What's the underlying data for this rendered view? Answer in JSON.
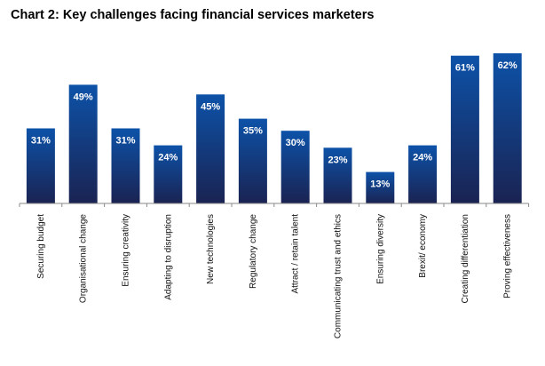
{
  "chart_data": {
    "type": "bar",
    "title": "Chart 2: Key challenges facing financial services marketers",
    "categories": [
      "Securing budget",
      "Organisational change",
      "Ensuring creativity",
      "Adapting to disruption",
      "New technologies",
      "Regulatory change",
      "Attract / retain talent",
      "Communicating trust and ethics",
      "Ensuring diversity",
      "Brexit/ economy",
      "Creating differentiation",
      "Proving effectiveness"
    ],
    "values": [
      31,
      49,
      31,
      24,
      45,
      35,
      30,
      23,
      13,
      24,
      61,
      62
    ],
    "value_labels": [
      "31%",
      "49%",
      "31%",
      "24%",
      "45%",
      "35%",
      "30%",
      "23%",
      "13%",
      "24%",
      "61%",
      "62%"
    ],
    "ylim": [
      0,
      62
    ],
    "grid": false,
    "legend": "none",
    "colors": {
      "bar_top": "#0d52a8",
      "bar_bottom": "#1a2352",
      "axis": "#8a8a8a"
    }
  }
}
